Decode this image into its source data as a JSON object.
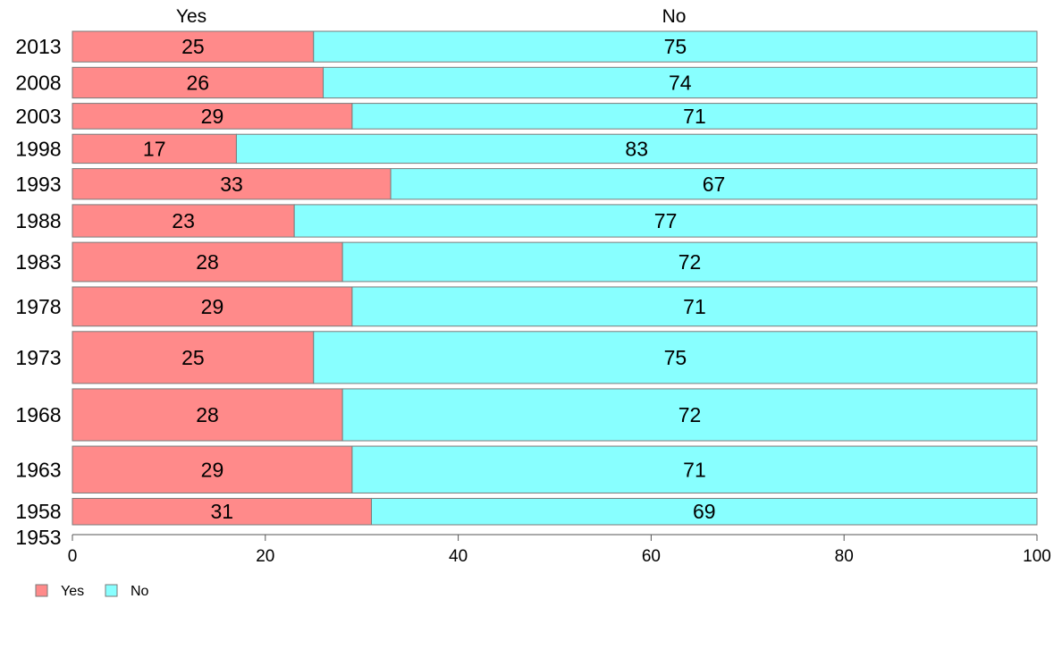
{
  "chart_data": {
    "type": "bar",
    "orientation": "horizontal",
    "stacked": true,
    "mosaic": true,
    "categories": [
      "2013",
      "2008",
      "2003",
      "1998",
      "1993",
      "1988",
      "1983",
      "1978",
      "1973",
      "1968",
      "1963",
      "1958",
      "1953"
    ],
    "series": [
      {
        "name": "Yes",
        "color": "#ff8a8a",
        "values": [
          25,
          26,
          29,
          17,
          33,
          23,
          28,
          29,
          25,
          28,
          29,
          31,
          null
        ]
      },
      {
        "name": "No",
        "color": "#88ffff",
        "values": [
          75,
          74,
          71,
          83,
          67,
          77,
          72,
          71,
          75,
          72,
          71,
          69,
          null
        ]
      }
    ],
    "relative_weight": [
      0.72,
      0.72,
      0.6,
      0.68,
      0.72,
      0.76,
      0.92,
      0.92,
      1.22,
      1.22,
      1.1,
      0.62,
      0.0
    ],
    "column_headers": [
      "Yes",
      "No"
    ],
    "xlim": [
      0,
      100
    ],
    "xticks": [
      0,
      20,
      40,
      60,
      80,
      100
    ],
    "legend": {
      "position": "bottom-left",
      "entries": [
        "Yes",
        "No"
      ]
    }
  }
}
